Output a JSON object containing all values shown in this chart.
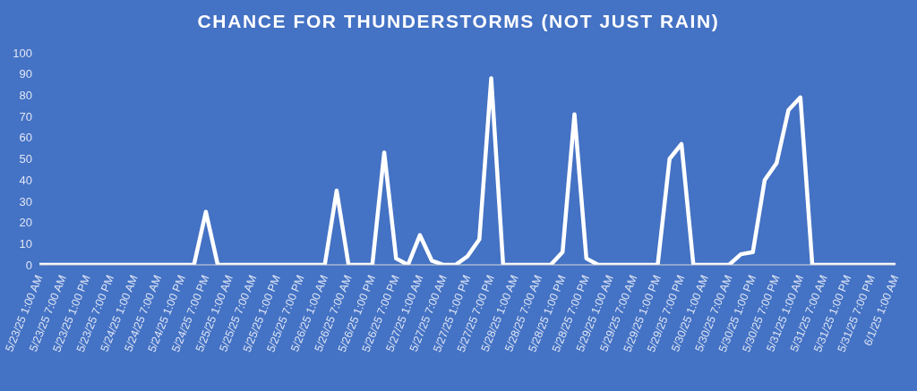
{
  "chart_data": {
    "type": "line",
    "title": "CHANCE FOR THUNDERSTORMS (NOT JUST RAIN)",
    "categories": [
      "5/23/25 1:00 AM",
      null,
      "5/23/25 7:00 AM",
      null,
      "5/23/25 1:00 PM",
      null,
      "5/23/25 7:00 PM",
      null,
      "5/24/25 1:00 AM",
      null,
      "5/24/25 7:00 AM",
      null,
      "5/24/25 1:00 PM",
      null,
      "5/24/25 7:00 PM",
      null,
      "5/25/25 1:00 AM",
      null,
      "5/25/25 7:00 AM",
      null,
      "5/25/25 1:00 PM",
      null,
      "5/25/25 7:00 PM",
      null,
      "5/26/25 1:00 AM",
      null,
      "5/26/25 7:00 AM",
      null,
      "5/26/25 1:00 PM",
      null,
      "5/26/25 7:00 PM",
      null,
      "5/27/25 1:00 AM",
      null,
      "5/27/25 7:00 AM",
      null,
      "5/27/25 1:00 PM",
      null,
      "5/27/25 7:00 PM",
      null,
      "5/28/25 1:00 AM",
      null,
      "5/28/25 7:00 AM",
      null,
      "5/28/25 1:00 PM",
      null,
      "5/28/25 7:00 PM",
      null,
      "5/29/25 1:00 AM",
      null,
      "5/29/25 7:00 AM",
      null,
      "5/29/25 1:00 PM",
      null,
      "5/29/25 7:00 PM",
      null,
      "5/30/25 1:00 AM",
      null,
      "5/30/25 7:00 AM",
      null,
      "5/30/25 1:00 PM",
      null,
      "5/30/25 7:00 PM",
      null,
      "5/31/25 1:00 AM",
      null,
      "5/31/25 7:00 AM",
      null,
      "5/31/25 1:00 PM",
      null,
      "5/31/25 7:00 PM",
      null,
      "6/1/25 1:00 AM"
    ],
    "series": [
      {
        "color": "#ffffff",
        "values": [
          0,
          0,
          0,
          0,
          0,
          0,
          0,
          0,
          0,
          0,
          0,
          0,
          0,
          0,
          25,
          0,
          0,
          0,
          0,
          0,
          0,
          0,
          0,
          0,
          0,
          35,
          0,
          0,
          0,
          53,
          3,
          0,
          14,
          2,
          0,
          0,
          4,
          12,
          88,
          0,
          0,
          0,
          0,
          0,
          6,
          71,
          3,
          0,
          0,
          0,
          0,
          0,
          0,
          50,
          57,
          0,
          0,
          0,
          0,
          5,
          6,
          40,
          48,
          73,
          79,
          0,
          0,
          0,
          0,
          0,
          0,
          0,
          0
        ]
      }
    ],
    "ylim": [
      0,
      100
    ],
    "yticks": [
      0,
      10,
      20,
      30,
      40,
      50,
      60,
      70,
      80,
      90,
      100
    ],
    "grid": false,
    "marker": "none",
    "line_style": "solid"
  }
}
